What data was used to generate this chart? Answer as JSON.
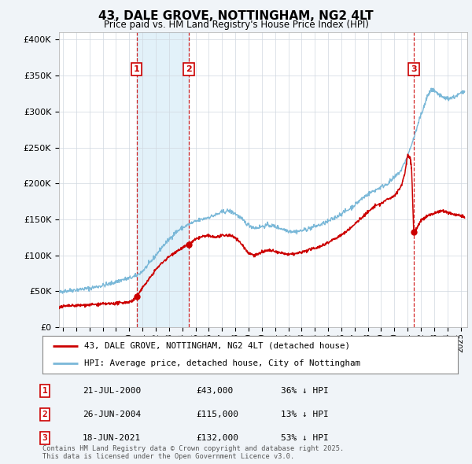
{
  "title": "43, DALE GROVE, NOTTINGHAM, NG2 4LT",
  "subtitle": "Price paid vs. HM Land Registry's House Price Index (HPI)",
  "ylabel_ticks": [
    "£0",
    "£50K",
    "£100K",
    "£150K",
    "£200K",
    "£250K",
    "£300K",
    "£350K",
    "£400K"
  ],
  "ytick_values": [
    0,
    50000,
    100000,
    150000,
    200000,
    250000,
    300000,
    350000,
    400000
  ],
  "ylim": [
    0,
    410000
  ],
  "xlim_start": 1994.7,
  "xlim_end": 2025.5,
  "background_color": "#f0f4f8",
  "plot_bg_color": "#ffffff",
  "grid_color": "#d0d8e0",
  "hpi_color": "#7ab8d8",
  "hpi_fill_color": "#d0e8f5",
  "price_color": "#cc0000",
  "sale_marker_color": "#cc0000",
  "transaction_label_color": "#cc0000",
  "transactions": [
    {
      "year": 2000.55,
      "price": 43000,
      "label": "1"
    },
    {
      "year": 2004.49,
      "price": 115000,
      "label": "2"
    },
    {
      "year": 2021.46,
      "price": 132000,
      "label": "3"
    }
  ],
  "shade_region": [
    2000.55,
    2004.49
  ],
  "transaction_vline_color": "#cc0000",
  "legend_entry1": "43, DALE GROVE, NOTTINGHAM, NG2 4LT (detached house)",
  "legend_entry2": "HPI: Average price, detached house, City of Nottingham",
  "table_rows": [
    {
      "num": "1",
      "date": "21-JUL-2000",
      "price": "£43,000",
      "hpi": "36% ↓ HPI"
    },
    {
      "num": "2",
      "date": "26-JUN-2004",
      "price": "£115,000",
      "hpi": "13% ↓ HPI"
    },
    {
      "num": "3",
      "date": "18-JUN-2021",
      "price": "£132,000",
      "hpi": "53% ↓ HPI"
    }
  ],
  "footnote": "Contains HM Land Registry data © Crown copyright and database right 2025.\nThis data is licensed under the Open Government Licence v3.0."
}
